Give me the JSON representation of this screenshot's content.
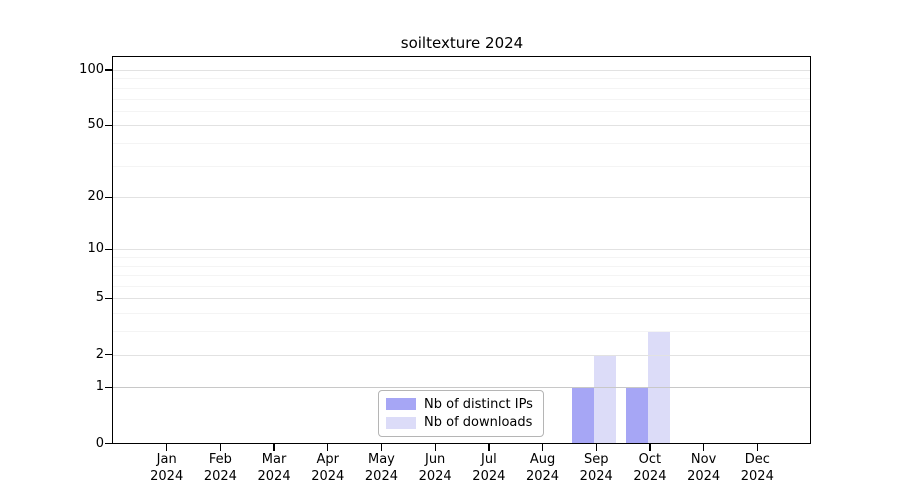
{
  "chart_data": {
    "type": "bar",
    "title": "soiltexture 2024",
    "x_months": [
      "Jan",
      "Feb",
      "Mar",
      "Apr",
      "May",
      "Jun",
      "Jul",
      "Aug",
      "Sep",
      "Oct",
      "Nov",
      "Dec"
    ],
    "x_year": "2024",
    "series": [
      {
        "name": "Nb of distinct IPs",
        "color": "#a6a6f5",
        "values": [
          0,
          0,
          0,
          0,
          0,
          0,
          0,
          0,
          1,
          1,
          0,
          0
        ]
      },
      {
        "name": "Nb of downloads",
        "color": "#dcdcf8",
        "values": [
          0,
          0,
          0,
          0,
          0,
          0,
          0,
          0,
          2,
          3,
          0,
          0
        ]
      }
    ],
    "y_scale": "log10(1+x)",
    "y_ticks": [
      0,
      1,
      2,
      5,
      10,
      20,
      50,
      100
    ],
    "y_minor_gridlines": [
      3,
      4,
      6,
      7,
      8,
      9,
      30,
      40,
      60,
      70,
      80,
      90
    ],
    "ylim": [
      0,
      117
    ],
    "grid": true,
    "legend_position": "bottom-center"
  },
  "colors": {
    "axis": "#000000",
    "major_grid": "#e2e2e2",
    "unit_grid": "#c8c8c8",
    "minor_grid": "#f4f4f4",
    "legend_border": "#b5b5b5",
    "background": "#ffffff"
  }
}
